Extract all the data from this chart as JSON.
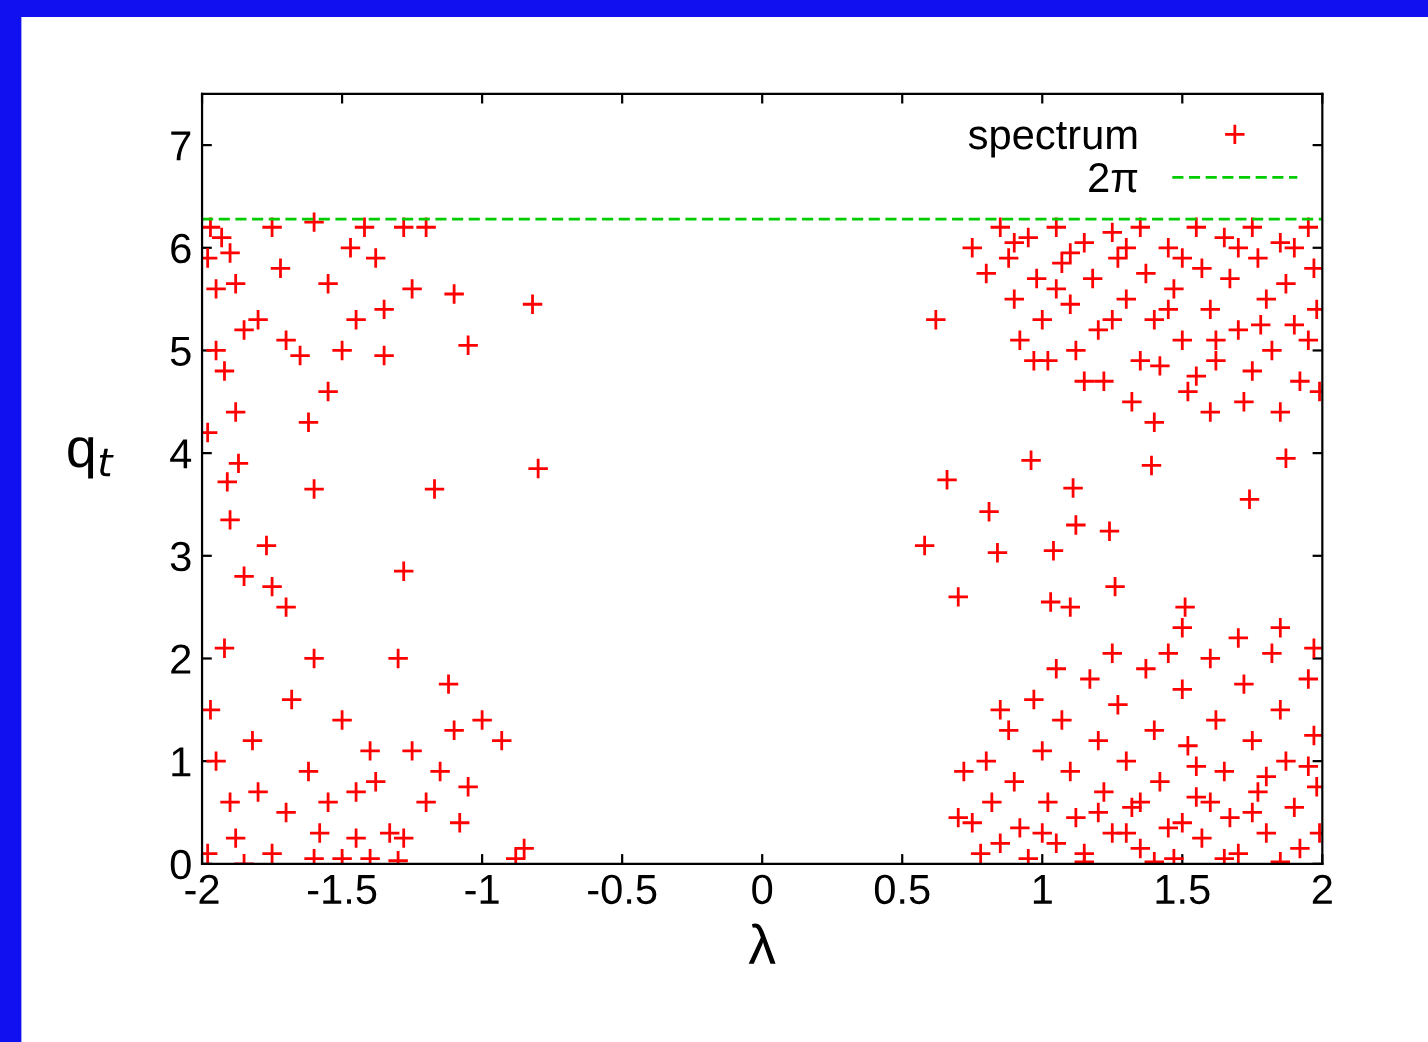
{
  "chart_data": {
    "type": "scatter",
    "xlabel": "λ",
    "ylabel": "q$_{t}$",
    "xlim": [
      -2,
      2
    ],
    "xticks": [
      -2,
      -1.5,
      -1,
      -0.5,
      0,
      0.5,
      1,
      1.5,
      2
    ],
    "ylim": [
      0,
      7.5
    ],
    "yticks": [
      0,
      1,
      2,
      3,
      4,
      5,
      6,
      7
    ],
    "grid": false,
    "legend": "top right",
    "marker": "cross",
    "ref_lines": [
      {
        "axis": "y",
        "value": 6.28,
        "label": "2π",
        "color": "#00cc00",
        "line_style": "dashed"
      }
    ],
    "series": [
      {
        "name": "spectrum",
        "color": "#ff0000",
        "x": [
          -1.97,
          -1.93,
          -1.98,
          -1.9,
          -1.95,
          -1.88,
          -1.85,
          -1.95,
          -1.8,
          -1.92,
          -1.88,
          -1.75,
          -1.72,
          -1.7,
          -1.65,
          -1.6,
          -1.55,
          -1.5,
          -1.45,
          -1.42,
          -1.38,
          -1.35,
          -1.35,
          -1.47,
          -1.28,
          -1.25,
          -1.2,
          -1.1,
          -1.05,
          -0.82,
          -1.55,
          -1.62,
          -1.98,
          -1.87,
          -1.91,
          -1.9,
          -1.77,
          -1.6,
          -1.17,
          -0.8,
          -1.97,
          -1.92,
          -1.85,
          -1.75,
          -1.7,
          -1.68,
          -1.6,
          -1.5,
          -1.45,
          -1.4,
          -1.3,
          -1.28,
          -1.25,
          -1.12,
          -1.1,
          -1.05,
          -1.0,
          -0.93,
          -1.95,
          -1.9,
          -1.88,
          -1.82,
          -1.8,
          -1.75,
          -1.7,
          -1.62,
          -1.58,
          -1.55,
          -1.5,
          -1.45,
          -1.38,
          -1.33,
          -1.28,
          -1.2,
          -1.15,
          -1.08,
          -0.85,
          -0.88,
          -1.98,
          -1.85,
          -1.6,
          -1.4,
          -1.3,
          0.58,
          0.84,
          1.04,
          0.7,
          1.03,
          1.1,
          1.26,
          1.24,
          1.12,
          1.51,
          1.5,
          1.85,
          1.97,
          0.96,
          0.66,
          1.11,
          0.81,
          1.39,
          1.74,
          1.87,
          0.62,
          0.75,
          0.8,
          0.85,
          0.88,
          0.9,
          0.92,
          0.95,
          0.98,
          1.0,
          1.02,
          1.05,
          1.07,
          1.1,
          1.12,
          1.15,
          1.18,
          1.2,
          1.22,
          1.25,
          1.27,
          1.3,
          1.32,
          1.35,
          1.37,
          1.4,
          1.42,
          1.45,
          1.47,
          1.5,
          1.52,
          1.55,
          1.57,
          1.6,
          1.62,
          1.65,
          1.67,
          1.7,
          1.72,
          1.75,
          1.77,
          1.8,
          1.82,
          1.85,
          1.87,
          1.9,
          1.92,
          1.95,
          1.97,
          1.98,
          1.99,
          1.6,
          1.4,
          1.85,
          1.15,
          0.97,
          1.3,
          1.5,
          1.7,
          1.9,
          1.1,
          0.9,
          1.62,
          1.78,
          1.45,
          1.25,
          1.05,
          1.35,
          1.55,
          1.75,
          1.95,
          0.72,
          0.75,
          0.78,
          0.8,
          0.82,
          0.85,
          0.88,
          0.9,
          0.92,
          0.95,
          0.97,
          1.0,
          1.02,
          1.05,
          1.07,
          1.1,
          1.12,
          1.15,
          1.17,
          1.2,
          1.22,
          1.25,
          1.27,
          1.3,
          1.32,
          1.35,
          1.37,
          1.4,
          1.42,
          1.45,
          1.47,
          1.5,
          1.52,
          1.55,
          1.57,
          1.6,
          1.62,
          1.65,
          1.67,
          1.7,
          1.72,
          1.75,
          1.77,
          1.8,
          1.82,
          1.85,
          1.87,
          1.9,
          1.92,
          1.95,
          1.97,
          1.98,
          1.99,
          0.85,
          1.05,
          1.25,
          1.45,
          1.7,
          1.15,
          1.4,
          1.65,
          1.85,
          1.55,
          1.75,
          1.35,
          1.95,
          1.6,
          1.3,
          1.8,
          1.5,
          1.2,
          1.0,
          0.7
        ],
        "values": [
          6.2,
          6.1,
          5.9,
          5.95,
          5.6,
          5.65,
          5.2,
          5.0,
          5.3,
          4.8,
          4.4,
          6.2,
          5.8,
          5.1,
          4.95,
          6.25,
          5.65,
          5.0,
          5.3,
          6.2,
          5.9,
          5.4,
          4.95,
          6.0,
          6.2,
          5.6,
          6.2,
          5.55,
          5.05,
          5.45,
          4.6,
          4.3,
          4.2,
          3.9,
          3.72,
          3.35,
          3.1,
          3.65,
          3.65,
          3.85,
          1.5,
          2.1,
          2.8,
          2.7,
          2.5,
          1.6,
          2.0,
          1.4,
          0.7,
          1.1,
          2.0,
          2.85,
          1.1,
          1.75,
          1.3,
          0.75,
          1.4,
          1.2,
          1.0,
          0.6,
          0.25,
          1.2,
          0.7,
          0.1,
          0.5,
          0.9,
          0.3,
          0.6,
          0.05,
          0.25,
          0.8,
          0.3,
          0.25,
          0.6,
          0.9,
          0.4,
          0.15,
          0.05,
          0.1,
          0.0,
          0.05,
          0.05,
          0.03,
          3.1,
          3.03,
          3.05,
          2.6,
          2.55,
          2.5,
          2.7,
          3.24,
          3.3,
          2.5,
          2.3,
          2.3,
          2.1,
          3.93,
          3.74,
          3.66,
          3.43,
          3.88,
          3.55,
          3.95,
          5.3,
          6.0,
          5.75,
          6.2,
          5.9,
          5.5,
          5.1,
          6.1,
          5.7,
          5.3,
          4.9,
          6.2,
          5.85,
          5.45,
          5.0,
          6.05,
          5.7,
          5.2,
          4.7,
          6.15,
          5.9,
          5.5,
          4.5,
          6.2,
          5.75,
          5.3,
          4.85,
          6.0,
          5.6,
          5.1,
          4.6,
          6.2,
          5.8,
          5.4,
          4.9,
          6.1,
          5.7,
          5.2,
          4.5,
          6.2,
          5.9,
          5.5,
          5.0,
          6.05,
          5.65,
          5.25,
          4.7,
          6.2,
          5.8,
          5.4,
          4.6,
          4.4,
          4.3,
          4.4,
          4.7,
          4.9,
          6.0,
          5.9,
          6.0,
          6.0,
          5.95,
          6.05,
          5.1,
          5.25,
          5.4,
          5.3,
          5.6,
          4.9,
          4.75,
          4.8,
          5.1,
          0.9,
          0.4,
          0.1,
          1.0,
          0.6,
          0.2,
          1.3,
          0.8,
          0.35,
          0.05,
          1.6,
          1.1,
          0.6,
          0.2,
          1.4,
          0.9,
          0.45,
          0.1,
          1.8,
          1.2,
          0.7,
          0.3,
          1.55,
          1.0,
          0.55,
          0.15,
          1.9,
          1.3,
          0.8,
          0.35,
          0.05,
          1.7,
          1.15,
          0.65,
          0.25,
          2.0,
          1.4,
          0.9,
          0.45,
          0.1,
          1.75,
          1.2,
          0.7,
          0.3,
          2.05,
          1.5,
          1.0,
          0.55,
          0.15,
          1.8,
          1.25,
          0.75,
          0.3,
          1.5,
          1.9,
          2.05,
          2.05,
          2.2,
          0.02,
          0.02,
          0.05,
          0.02,
          0.95,
          0.5,
          0.6,
          0.95,
          0.6,
          0.3,
          0.85,
          0.4,
          0.5,
          0.3,
          0.45
        ]
      }
    ]
  }
}
